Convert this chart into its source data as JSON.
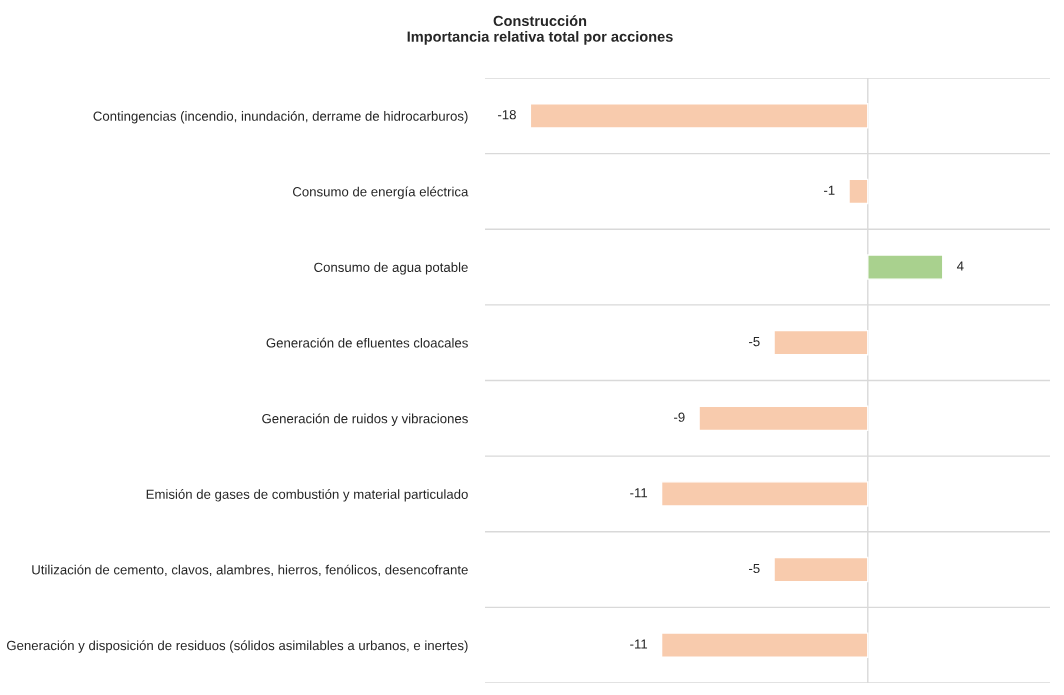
{
  "chart_data": {
    "type": "bar",
    "orientation": "horizontal",
    "title": "Construcción\nImportancia relativa total por acciones",
    "categories": [
      "Contingencias (incendio, inundación, derrame de hidrocarburos)",
      "Consumo de energía eléctrica",
      "Consumo de agua potable",
      "Generación de efluentes cloacales",
      "Generación de ruidos y vibraciones",
      "Emisión de gases de combustión y material particulado",
      "Utilización de cemento, clavos, alambres, hierros, fenólicos, desencofrante",
      "Generación y disposición de residuos (sólidos asimilables a urbanos, e inertes)"
    ],
    "values": [
      -18,
      -1,
      4,
      -5,
      -9,
      -11,
      -5,
      -11
    ],
    "colors": [
      "#f8cbad",
      "#f8cbad",
      "#a9d18e",
      "#f8cbad",
      "#f8cbad",
      "#f8cbad",
      "#f8cbad",
      "#f8cbad"
    ],
    "data_labels": true,
    "grid": "y",
    "legend": false
  }
}
